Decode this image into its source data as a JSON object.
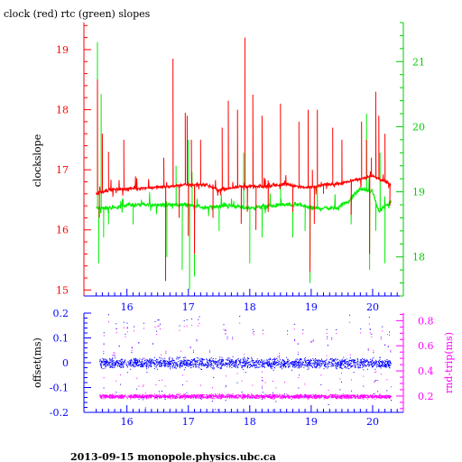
{
  "title": "clock (red) rtc (green) slopes",
  "footer": "2013-09-15 monopole.physics.ubc.ca",
  "colors": {
    "clock": "#ff0000",
    "rtc": "#00ee00",
    "offset": "#0000ff",
    "rndtrip": "#ff00ff",
    "axis_left_top": "#ff0000",
    "axis_right_top": "#00cc00",
    "axis_bottom": "#0000ff",
    "axis_right_bottom": "#ff00ff"
  },
  "chart_data": [
    {
      "type": "line",
      "title": "clock (red) rtc (green) slopes",
      "xlabel": "",
      "xlim": [
        15.3,
        20.5
      ],
      "x_ticks": [
        16,
        17,
        18,
        19,
        20
      ],
      "ylabel": "clockslope",
      "ylim": [
        14.9,
        19.45
      ],
      "y_ticks": [
        15,
        16,
        17,
        18,
        19
      ],
      "y2label": "",
      "y2lim": [
        17.4,
        21.6
      ],
      "y2_ticks": [
        18,
        19,
        20,
        21
      ],
      "series": [
        {
          "name": "clock",
          "axis": "left",
          "color": "#ff0000",
          "base_points": [
            [
              15.5,
              16.6
            ],
            [
              15.7,
              16.67
            ],
            [
              16.0,
              16.68
            ],
            [
              16.5,
              16.71
            ],
            [
              16.7,
              16.72
            ],
            [
              16.9,
              16.75
            ],
            [
              17.3,
              16.75
            ],
            [
              17.5,
              16.66
            ],
            [
              17.8,
              16.72
            ],
            [
              18.2,
              16.72
            ],
            [
              18.6,
              16.76
            ],
            [
              18.9,
              16.7
            ],
            [
              19.2,
              16.75
            ],
            [
              19.5,
              16.78
            ],
            [
              19.8,
              16.85
            ],
            [
              20.0,
              16.9
            ],
            [
              20.3,
              16.75
            ]
          ],
          "spikes": [
            [
              15.52,
              18.5
            ],
            [
              15.55,
              16.2
            ],
            [
              15.6,
              17.6
            ],
            [
              15.7,
              17.3
            ],
            [
              15.95,
              17.5
            ],
            [
              16.6,
              17.2
            ],
            [
              16.63,
              15.15
            ],
            [
              16.75,
              18.85
            ],
            [
              16.85,
              16.2
            ],
            [
              16.95,
              17.95
            ],
            [
              16.98,
              17.9
            ],
            [
              17.0,
              15.9
            ],
            [
              17.05,
              17.5
            ],
            [
              17.1,
              15.6
            ],
            [
              17.2,
              17.5
            ],
            [
              17.4,
              16.2
            ],
            [
              17.55,
              17.7
            ],
            [
              17.65,
              18.15
            ],
            [
              17.8,
              18.0
            ],
            [
              17.86,
              16.1
            ],
            [
              17.92,
              19.2
            ],
            [
              17.96,
              16.3
            ],
            [
              18.05,
              18.25
            ],
            [
              18.1,
              16.0
            ],
            [
              18.2,
              17.9
            ],
            [
              18.3,
              16.3
            ],
            [
              18.5,
              18.1
            ],
            [
              18.7,
              16.3
            ],
            [
              18.8,
              17.8
            ],
            [
              18.95,
              18.0
            ],
            [
              18.98,
              15.3
            ],
            [
              19.02,
              17.0
            ],
            [
              19.05,
              16.1
            ],
            [
              19.1,
              18.0
            ],
            [
              19.2,
              16.6
            ],
            [
              19.35,
              17.7
            ],
            [
              19.5,
              17.5
            ],
            [
              19.65,
              16.25
            ],
            [
              19.82,
              17.8
            ],
            [
              19.9,
              17.5
            ],
            [
              19.95,
              15.6
            ],
            [
              19.98,
              17.2
            ],
            [
              20.05,
              18.3
            ],
            [
              20.1,
              17.9
            ],
            [
              20.2,
              17.6
            ],
            [
              20.28,
              16.4
            ]
          ]
        },
        {
          "name": "rtc",
          "axis": "right",
          "color": "#00ee00",
          "base_points": [
            [
              15.5,
              18.75
            ],
            [
              15.8,
              18.75
            ],
            [
              16.0,
              18.8
            ],
            [
              16.5,
              18.8
            ],
            [
              17.0,
              18.8
            ],
            [
              17.3,
              18.75
            ],
            [
              17.6,
              18.8
            ],
            [
              18.0,
              18.75
            ],
            [
              18.5,
              18.8
            ],
            [
              18.8,
              18.8
            ],
            [
              19.0,
              18.75
            ],
            [
              19.4,
              18.75
            ],
            [
              19.6,
              18.85
            ],
            [
              19.8,
              19.05
            ],
            [
              20.0,
              19.0
            ],
            [
              20.1,
              18.7
            ],
            [
              20.3,
              18.85
            ]
          ],
          "spikes": [
            [
              15.52,
              21.3
            ],
            [
              15.54,
              17.9
            ],
            [
              15.58,
              20.5
            ],
            [
              15.62,
              18.3
            ],
            [
              15.7,
              18.5
            ],
            [
              16.1,
              18.5
            ],
            [
              16.65,
              18.0
            ],
            [
              16.8,
              19.4
            ],
            [
              16.9,
              17.8
            ],
            [
              17.0,
              19.8
            ],
            [
              17.02,
              17.5
            ],
            [
              17.06,
              19.3
            ],
            [
              17.1,
              17.7
            ],
            [
              17.5,
              18.4
            ],
            [
              17.9,
              19.6
            ],
            [
              18.0,
              17.9
            ],
            [
              18.2,
              18.3
            ],
            [
              18.5,
              19.5
            ],
            [
              18.7,
              18.3
            ],
            [
              18.9,
              18.4
            ],
            [
              18.98,
              17.6
            ],
            [
              19.1,
              19.1
            ],
            [
              19.65,
              18.5
            ],
            [
              19.9,
              20.2
            ],
            [
              19.95,
              17.8
            ],
            [
              20.05,
              18.4
            ],
            [
              20.12,
              19.6
            ],
            [
              20.2,
              17.9
            ]
          ]
        }
      ]
    },
    {
      "type": "scatter",
      "title": "",
      "xlabel": "",
      "xlim": [
        15.3,
        20.5
      ],
      "x_ticks": [
        16,
        17,
        18,
        19,
        20
      ],
      "ylabel": "offset(ms)",
      "ylim": [
        -0.2,
        0.2
      ],
      "y_ticks": [
        -0.2,
        -0.1,
        0,
        0.1,
        0.2
      ],
      "y2label": "rnd-trip(ms)",
      "y2lim": [
        0.07,
        0.86
      ],
      "y2_ticks": [
        0.2,
        0.4,
        0.6,
        0.8
      ],
      "series": [
        {
          "name": "offset",
          "axis": "left",
          "color": "#0000ff",
          "x_range": [
            15.55,
            20.3
          ],
          "center": 0.0,
          "spread": 0.015,
          "outlier_range": [
            -0.2,
            0.2
          ]
        },
        {
          "name": "rnd-trip",
          "axis": "right",
          "color": "#ff00ff",
          "x_range": [
            15.55,
            20.3
          ],
          "center": 0.2,
          "spread": 0.012,
          "outlier_range": [
            0.2,
            0.8
          ]
        }
      ]
    }
  ]
}
